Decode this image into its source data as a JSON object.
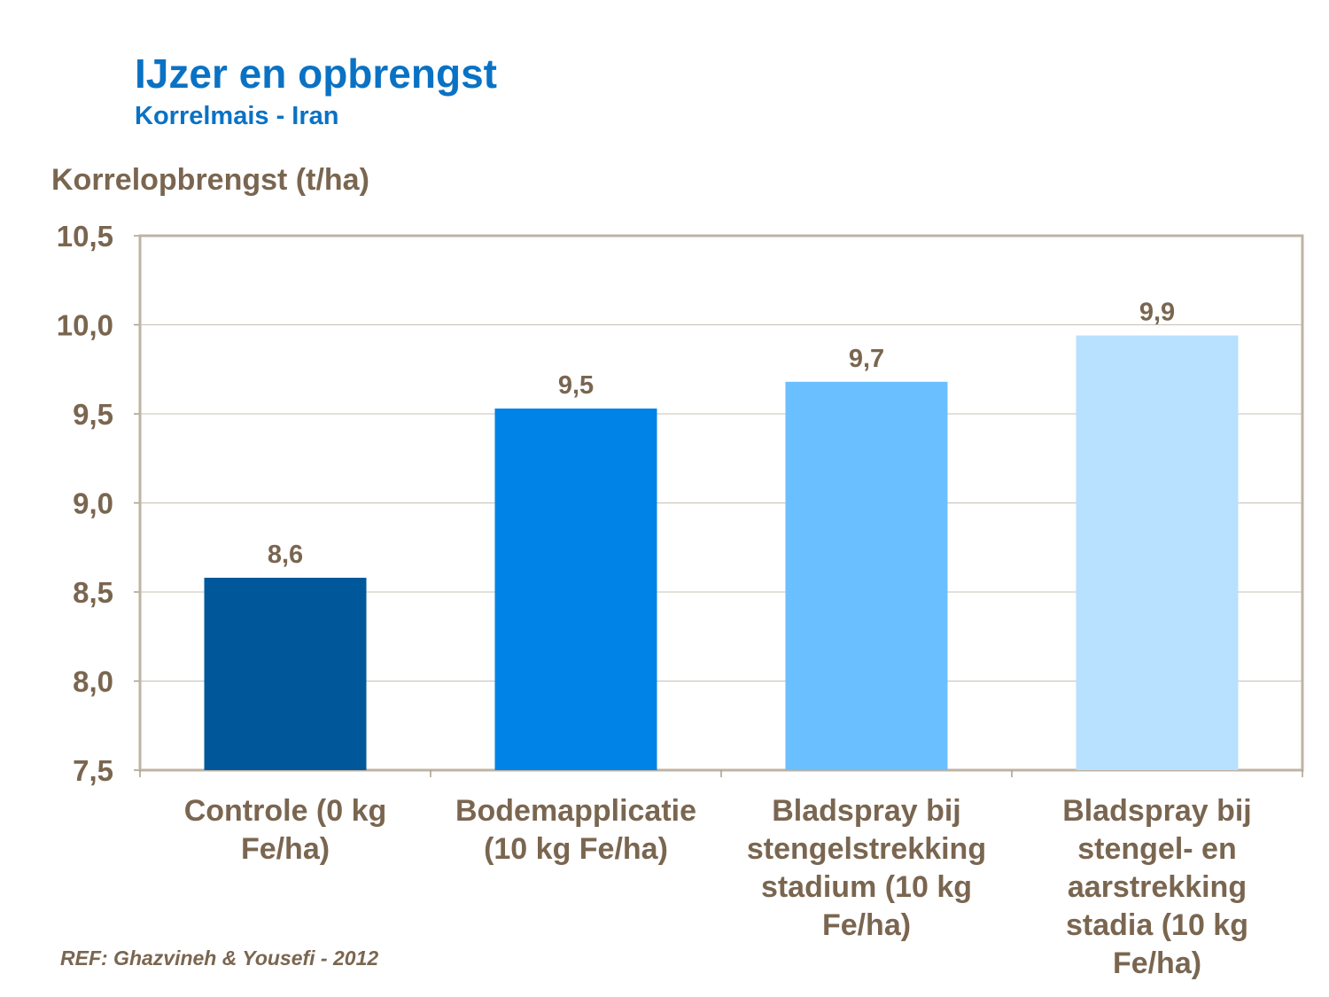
{
  "chart_data": {
    "type": "bar",
    "title": "IJzer en opbrengst",
    "subtitle": "Korrelmais  - Iran",
    "ylabel": "Korrelopbrengst (t/ha)",
    "xlabel": "",
    "ylim": [
      7.5,
      10.5
    ],
    "yticks": [
      "7,5",
      "8,0",
      "8,5",
      "9,0",
      "9,5",
      "10,0",
      "10,5"
    ],
    "grid": true,
    "categories": [
      [
        "Controle (0 kg",
        "Fe/ha)"
      ],
      [
        "Bodemapplicatie",
        "(10 kg Fe/ha)"
      ],
      [
        "Bladspray bij",
        "stengelstrekking",
        "stadium (10 kg",
        "Fe/ha)"
      ],
      [
        "Bladspray bij",
        "stengel- en",
        "aarstrekking",
        "stadia (10 kg",
        "Fe/ha)"
      ]
    ],
    "values": [
      8.58,
      9.53,
      9.68,
      9.94
    ],
    "data_labels": [
      "8,6",
      "9,5",
      "9,7",
      "9,9"
    ],
    "colors": [
      "#00589a",
      "#0083e6",
      "#6abfff",
      "#b8e0ff"
    ]
  },
  "footer": {
    "reference": "REF: Ghazvineh  & Yousefi - 2012"
  }
}
